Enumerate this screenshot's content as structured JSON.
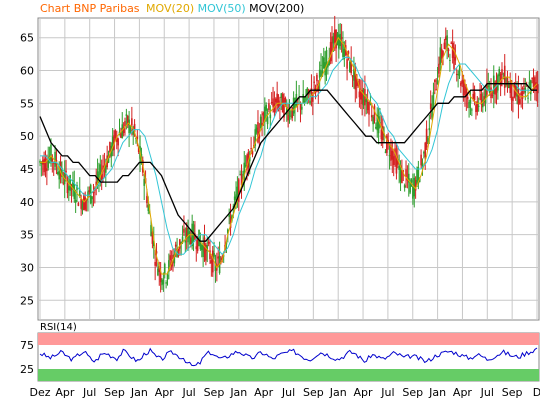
{
  "legend": {
    "title": "Chart BNP Paribas",
    "mov20": "MOV(20)",
    "mov50": "MOV(50)",
    "mov200": "MOV(200)"
  },
  "rsi": {
    "label": "RSI(14)"
  },
  "colors": {
    "title": "#ff6600",
    "mov20": "#e0a800",
    "mov50": "#33c6d6",
    "mov200": "#000000",
    "candle_up": "#2e9e2e",
    "candle_down": "#d42020",
    "rsi_line": "#0000cc",
    "rsi_overbought": "#ff9999",
    "rsi_oversold": "#66cc66",
    "grid": "#c8c8c8",
    "plot_bg": "#ffffff",
    "axis": "#000000"
  },
  "chart_data": {
    "type": "line",
    "title": "Chart BNP Paribas",
    "series": [
      {
        "name": "MOV(20)",
        "values": [
          46,
          46,
          47,
          46,
          44,
          43,
          42,
          41,
          40,
          41,
          42,
          44,
          46,
          48,
          50,
          51,
          52,
          51,
          48,
          44,
          38,
          32,
          29,
          29,
          31,
          33,
          34,
          35,
          35,
          34,
          33,
          32,
          30,
          31,
          35,
          38,
          41,
          44,
          47,
          49,
          51,
          53,
          54,
          55,
          55,
          54,
          54,
          55,
          55,
          56,
          57,
          59,
          61,
          63,
          65,
          64,
          62,
          60,
          57,
          56,
          55,
          53,
          51,
          49,
          48,
          46,
          44,
          43,
          42,
          44,
          47,
          52,
          57,
          62,
          64,
          63,
          61,
          58,
          56,
          55,
          55,
          56,
          57,
          58,
          59,
          59,
          57,
          56,
          56,
          57,
          58
        ]
      },
      {
        "name": "MOV(50)",
        "values": [
          47,
          47,
          46,
          46,
          45,
          44,
          43,
          42,
          41,
          41,
          42,
          43,
          44,
          45,
          47,
          49,
          50,
          51,
          51,
          50,
          47,
          44,
          40,
          36,
          33,
          32,
          32,
          33,
          34,
          35,
          35,
          34,
          33,
          32,
          33,
          35,
          38,
          40,
          42,
          45,
          47,
          50,
          52,
          54,
          55,
          55,
          55,
          55,
          55,
          56,
          56,
          57,
          58,
          60,
          61,
          62,
          62,
          61,
          59,
          58,
          56,
          55,
          53,
          51,
          50,
          48,
          47,
          46,
          45,
          45,
          46,
          48,
          51,
          55,
          58,
          60,
          61,
          61,
          60,
          59,
          58,
          57,
          57,
          58,
          58,
          58,
          58,
          57,
          57,
          57,
          57
        ]
      },
      {
        "name": "MOV(200)",
        "values": [
          53,
          51,
          49,
          48,
          47,
          47,
          46,
          46,
          45,
          44,
          44,
          43,
          43,
          43,
          43,
          44,
          44,
          45,
          46,
          46,
          46,
          45,
          44,
          42,
          40,
          38,
          37,
          36,
          35,
          34,
          34,
          35,
          36,
          37,
          38,
          39,
          41,
          43,
          45,
          47,
          49,
          50,
          51,
          52,
          53,
          54,
          55,
          56,
          56,
          57,
          57,
          57,
          57,
          56,
          55,
          54,
          53,
          52,
          51,
          50,
          50,
          49,
          49,
          49,
          49,
          49,
          49,
          50,
          51,
          52,
          53,
          54,
          55,
          55,
          55,
          56,
          56,
          56,
          57,
          57,
          57,
          58,
          58,
          58,
          58,
          58,
          58,
          58,
          58,
          57,
          57
        ]
      }
    ],
    "ylim": [
      22,
      68
    ],
    "yticks": [
      "25",
      "30",
      "35",
      "40",
      "45",
      "50",
      "55",
      "60",
      "65"
    ],
    "xticks": [
      "Dez",
      "Apr",
      "Jul",
      "Sep",
      "Jan",
      "Apr",
      "Jul",
      "Sep",
      "Jan",
      "Apr",
      "Jul",
      "Sep",
      "Jan",
      "Apr",
      "Jul",
      "Sep",
      "Jan",
      "Apr",
      "Jul",
      "Sep",
      "D"
    ],
    "rsi": {
      "name": "RSI(14)",
      "yticks": [
        "25",
        "75"
      ],
      "ylim": [
        0,
        100
      ],
      "overbought": 75,
      "oversold": 25,
      "values": [
        58,
        52,
        48,
        55,
        60,
        50,
        45,
        55,
        62,
        48,
        40,
        55,
        58,
        52,
        47,
        62,
        57,
        45,
        42,
        58,
        63,
        50,
        45,
        55,
        60,
        52,
        48,
        35,
        30,
        38,
        55,
        60,
        50,
        45,
        52,
        58,
        62,
        55,
        48,
        50,
        60,
        55,
        45,
        52,
        57,
        60,
        62,
        55,
        48,
        45,
        55,
        60,
        55,
        50,
        45,
        52,
        60,
        58,
        48,
        40,
        55,
        52,
        45,
        50,
        58,
        55,
        48,
        52,
        50,
        45,
        40,
        48,
        55,
        58,
        62,
        60,
        55,
        50,
        48,
        55,
        52,
        45,
        50,
        56,
        60,
        55,
        50,
        52,
        58,
        62,
        68
      ]
    },
    "grid": true,
    "legend": "top-left"
  }
}
